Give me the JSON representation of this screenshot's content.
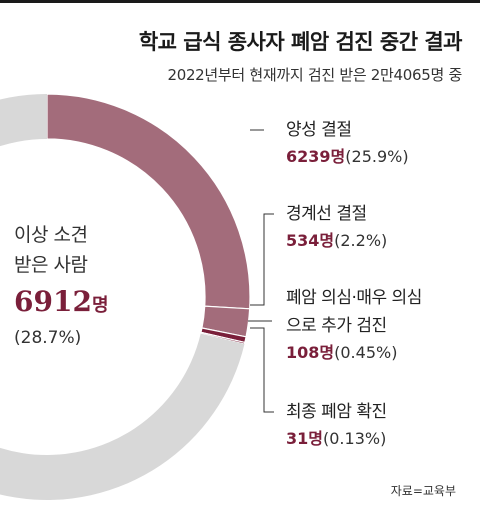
{
  "title": "학교 급식 종사자 폐암 검진 중간 결과",
  "subtitle": "2022년부터 현재까지 검진 받은 2만4065명 중",
  "source": "자료=교육부",
  "colors": {
    "positive": "#a36c7b",
    "rest": "#d8d8d8",
    "accent": "#7a1f3a"
  },
  "center": {
    "label_line1": "이상 소견",
    "label_line2": "받은 사람",
    "count": "6912",
    "unit": "명",
    "pct": "(28.7%)"
  },
  "chart_data": {
    "type": "pie",
    "title": "학교 급식 종사자 폐암 검진 중간 결과",
    "total": 24065,
    "slices": [
      {
        "label": "양성 결절",
        "count": 6239,
        "pct": 25.9
      },
      {
        "label": "경계선 결절",
        "count": 534,
        "pct": 2.2
      },
      {
        "label": "폐암 의심·매우 의심으로 추가 검진",
        "count": 108,
        "pct": 0.45
      },
      {
        "label": "최종 폐암 확진",
        "count": 31,
        "pct": 0.13
      },
      {
        "label": "",
        "count": 17153,
        "pct": 71.3
      }
    ]
  },
  "annotations": [
    {
      "name_line1": "양성 결절",
      "name_line2": "",
      "count": "6239명",
      "pct": "(25.9%)"
    },
    {
      "name_line1": "경계선 결절",
      "name_line2": "",
      "count": "534명",
      "pct": "(2.2%)"
    },
    {
      "name_line1": "폐암 의심·매우 의심",
      "name_line2": "으로 추가 검진",
      "count": "108명",
      "pct": "(0.45%)"
    },
    {
      "name_line1": "최종 폐암 확진",
      "name_line2": "",
      "count": "31명",
      "pct": "(0.13%)"
    }
  ]
}
